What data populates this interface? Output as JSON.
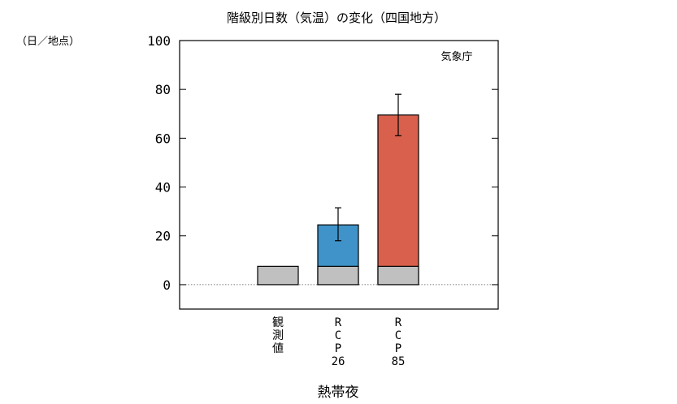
{
  "chart_data": {
    "type": "bar",
    "title": "階級別日数（気温）の変化（四国地方）",
    "unit_label": "（日／地点）",
    "credit": "気象庁",
    "xlabel": "熱帯夜",
    "ylim": [
      -10,
      100
    ],
    "yticks": [
      0,
      20,
      40,
      60,
      80,
      100
    ],
    "categories": [
      {
        "id": "obs",
        "lines": [
          "観",
          "測",
          "値"
        ]
      },
      {
        "id": "rcp26",
        "lines": [
          "R",
          "C",
          "P",
          "26"
        ]
      },
      {
        "id": "rcp85",
        "lines": [
          "R",
          "C",
          "P",
          "85"
        ]
      }
    ],
    "series": [
      {
        "id": "baseline",
        "values": [
          7.5,
          7.5,
          7.5
        ],
        "color": "#c0c0c0"
      },
      {
        "id": "future_change",
        "values": [
          null,
          24.5,
          69.5
        ],
        "colors": [
          "#c0c0c0",
          "#3f93c8",
          "#d9604d"
        ],
        "error_low": [
          null,
          18,
          61
        ],
        "error_high": [
          null,
          31.5,
          78
        ]
      }
    ],
    "grid": false,
    "zero_line": "dotted"
  }
}
